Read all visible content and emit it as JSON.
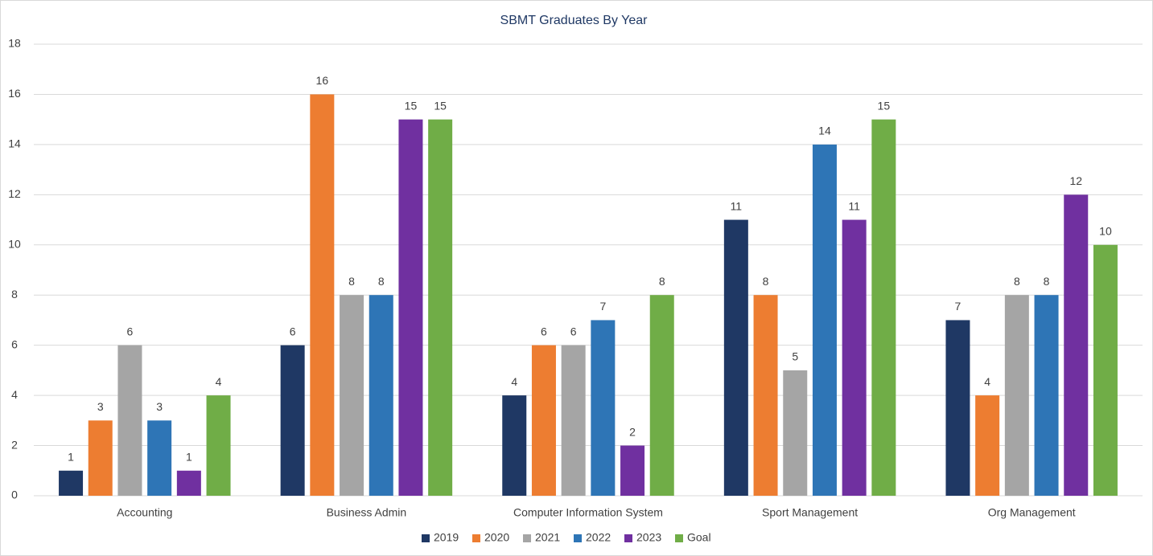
{
  "chart_data": {
    "type": "bar",
    "title": "SBMT Graduates By Year",
    "categories": [
      "Accounting",
      "Business Admin",
      "Computer Information System",
      "Sport Management",
      "Org Management"
    ],
    "series": [
      {
        "name": "2019",
        "color": "#1f3864",
        "values": [
          1,
          6,
          4,
          11,
          7
        ]
      },
      {
        "name": "2020",
        "color": "#ed7d31",
        "values": [
          3,
          16,
          6,
          8,
          4
        ]
      },
      {
        "name": "2021",
        "color": "#a5a5a5",
        "values": [
          6,
          8,
          6,
          5,
          8
        ]
      },
      {
        "name": "2022",
        "color": "#2e75b6",
        "values": [
          3,
          8,
          7,
          14,
          8
        ]
      },
      {
        "name": "2023",
        "color": "#7030a0",
        "values": [
          1,
          15,
          2,
          11,
          12
        ]
      },
      {
        "name": "Goal",
        "color": "#70ad47",
        "values": [
          4,
          15,
          8,
          15,
          10
        ]
      }
    ],
    "ylim": [
      0,
      18
    ],
    "yticks": [
      0,
      2,
      4,
      6,
      8,
      10,
      12,
      14,
      16,
      18
    ],
    "grid": true,
    "legend": "bottom"
  }
}
